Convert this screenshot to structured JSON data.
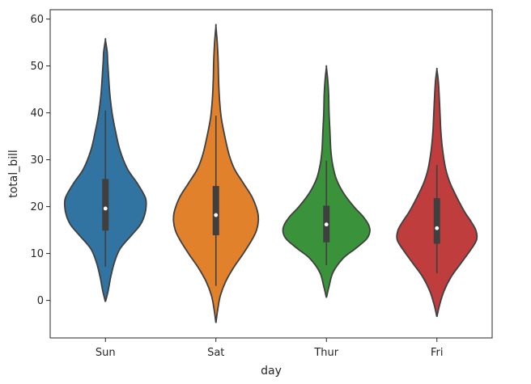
{
  "chart_data": {
    "type": "violin",
    "title": "",
    "xlabel": "day",
    "ylabel": "total_bill",
    "ylim": [
      -8,
      62
    ],
    "yticks": [
      0,
      10,
      20,
      30,
      40,
      50,
      60
    ],
    "grid": false,
    "categories": [
      "Sun",
      "Sat",
      "Thur",
      "Fri"
    ],
    "series": [
      {
        "category": "Sun",
        "color": "#3274a1",
        "kde_range": [
          -0.3,
          55.5
        ],
        "density_profile": [
          [
            -0.3,
            0.0
          ],
          [
            2,
            0.06
          ],
          [
            5,
            0.12
          ],
          [
            8,
            0.2
          ],
          [
            11,
            0.33
          ],
          [
            14,
            0.6
          ],
          [
            16,
            0.78
          ],
          [
            18,
            0.88
          ],
          [
            20,
            0.92
          ],
          [
            22,
            0.9
          ],
          [
            25,
            0.72
          ],
          [
            28,
            0.5
          ],
          [
            32,
            0.33
          ],
          [
            36,
            0.23
          ],
          [
            40,
            0.15
          ],
          [
            44,
            0.1
          ],
          [
            48,
            0.07
          ],
          [
            51,
            0.05
          ],
          [
            53,
            0.04
          ],
          [
            55.5,
            0.0
          ]
        ],
        "whisker": [
          7.2,
          40.5
        ],
        "q1": 14.9,
        "median": 19.6,
        "q3": 25.9
      },
      {
        "category": "Sat",
        "color": "#e1812c",
        "kde_range": [
          -4.8,
          58.4
        ],
        "density_profile": [
          [
            -4.8,
            0.0
          ],
          [
            -2,
            0.04
          ],
          [
            1,
            0.1
          ],
          [
            4,
            0.22
          ],
          [
            7,
            0.4
          ],
          [
            10,
            0.62
          ],
          [
            13,
            0.82
          ],
          [
            15,
            0.92
          ],
          [
            17,
            0.96
          ],
          [
            19,
            0.94
          ],
          [
            22,
            0.82
          ],
          [
            25,
            0.62
          ],
          [
            28,
            0.42
          ],
          [
            31,
            0.3
          ],
          [
            35,
            0.2
          ],
          [
            39,
            0.12
          ],
          [
            43,
            0.08
          ],
          [
            47,
            0.06
          ],
          [
            51,
            0.05
          ],
          [
            55,
            0.03
          ],
          [
            58.4,
            0.0
          ]
        ],
        "whisker": [
          3.1,
          39.4
        ],
        "q1": 13.9,
        "median": 18.2,
        "q3": 24.4
      },
      {
        "category": "Thur",
        "color": "#3a923a",
        "kde_range": [
          0.6,
          49.7
        ],
        "density_profile": [
          [
            0.6,
            0.0
          ],
          [
            3,
            0.06
          ],
          [
            6,
            0.15
          ],
          [
            9,
            0.38
          ],
          [
            11,
            0.65
          ],
          [
            13,
            0.9
          ],
          [
            14.5,
            0.98
          ],
          [
            16,
            0.96
          ],
          [
            18,
            0.82
          ],
          [
            20,
            0.62
          ],
          [
            23,
            0.38
          ],
          [
            26,
            0.22
          ],
          [
            29,
            0.14
          ],
          [
            32,
            0.1
          ],
          [
            36,
            0.08
          ],
          [
            40,
            0.06
          ],
          [
            44,
            0.05
          ],
          [
            47,
            0.03
          ],
          [
            49.7,
            0.0
          ]
        ],
        "whisker": [
          7.5,
          29.8
        ],
        "q1": 12.4,
        "median": 16.2,
        "q3": 20.2
      },
      {
        "category": "Fri",
        "color": "#c03d3e",
        "kde_range": [
          -3.5,
          49.2
        ],
        "density_profile": [
          [
            -3.5,
            0.0
          ],
          [
            -1,
            0.06
          ],
          [
            2,
            0.16
          ],
          [
            5,
            0.32
          ],
          [
            8,
            0.55
          ],
          [
            11,
            0.78
          ],
          [
            13,
            0.9
          ],
          [
            15,
            0.88
          ],
          [
            17,
            0.76
          ],
          [
            19,
            0.62
          ],
          [
            22,
            0.45
          ],
          [
            25,
            0.3
          ],
          [
            28,
            0.2
          ],
          [
            32,
            0.13
          ],
          [
            36,
            0.09
          ],
          [
            40,
            0.07
          ],
          [
            44,
            0.05
          ],
          [
            47,
            0.03
          ],
          [
            49.2,
            0.0
          ]
        ],
        "whisker": [
          5.8,
          28.9
        ],
        "q1": 12.1,
        "median": 15.4,
        "q3": 21.8
      }
    ]
  }
}
